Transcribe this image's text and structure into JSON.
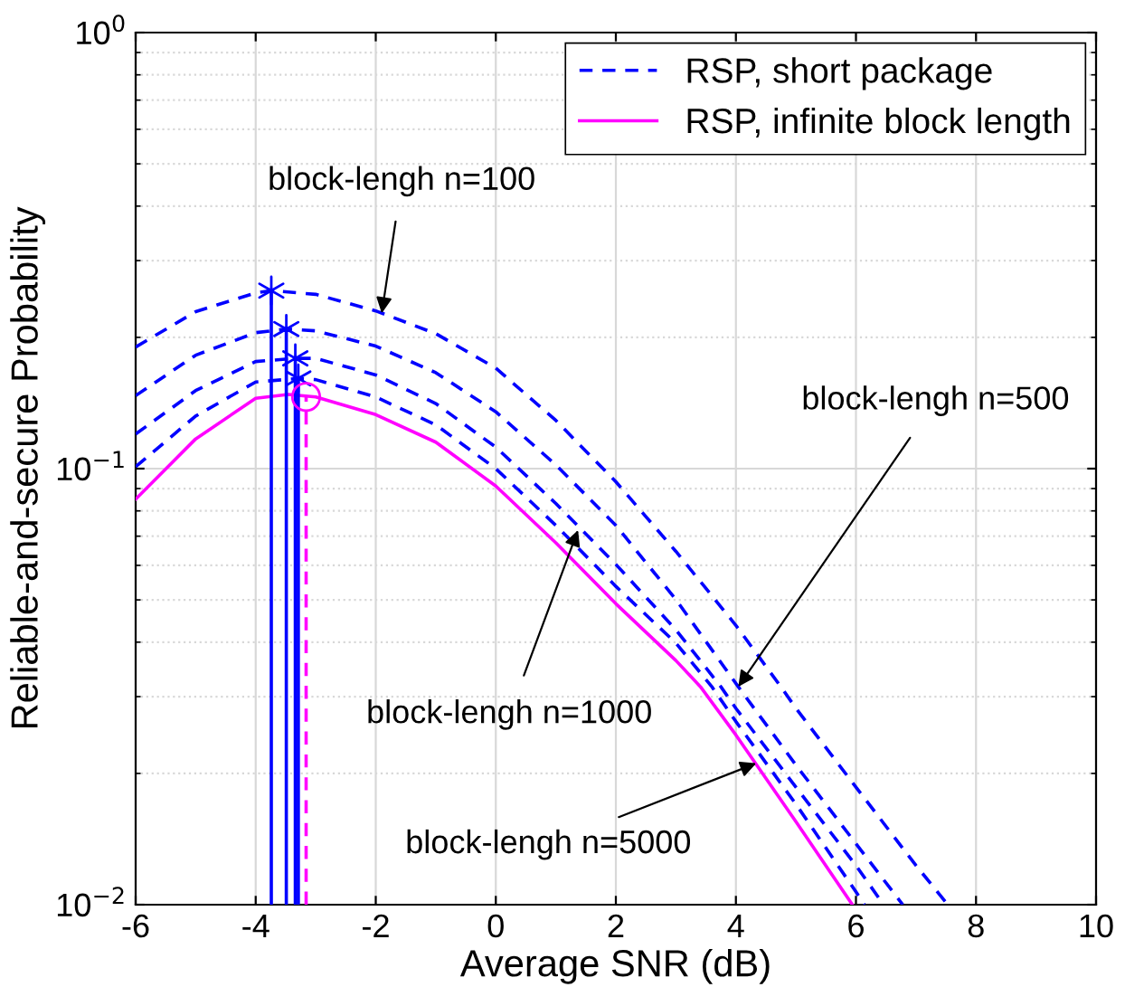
{
  "chart_data": {
    "type": "line",
    "xlabel": "Average SNR (dB)",
    "ylabel": "Reliable-and-secure Probability",
    "log": "y",
    "grid": true,
    "legend": "top right",
    "xlim": [
      -6,
      10
    ],
    "xticks": [
      -6,
      -4,
      -2,
      0,
      2,
      4,
      6,
      8,
      10
    ],
    "ylim": [
      0.01,
      1
    ],
    "yticks": [
      {
        "value": 0.01,
        "label": "10$^{−2}$"
      },
      {
        "value": 0.1,
        "label": "10$^{−1}$"
      },
      {
        "value": 1,
        "label": "10$^{0}$"
      }
    ],
    "series": [
      {
        "name": "RSP, short package",
        "color": "#0000ff",
        "line_style": "dashed",
        "marker": "none",
        "x": [
          -6,
          -5,
          -4,
          -3.74,
          -3,
          -2,
          -1,
          0,
          1,
          2,
          3,
          4,
          4.75,
          5,
          6,
          7,
          7.53
        ],
        "values": [
          0.19,
          0.229,
          0.253,
          0.256,
          0.251,
          0.23,
          0.204,
          0.17,
          0.129,
          0.0933,
          0.0646,
          0.0437,
          0.0316,
          0.0282,
          0.0186,
          0.0123,
          0.01
        ]
      },
      {
        "color": "#0000ff",
        "line_style": "dashed",
        "marker": "none",
        "x": [
          -6,
          -5,
          -4,
          -3.49,
          -3,
          -2,
          -1,
          0,
          1,
          2,
          3,
          4.04,
          5,
          6,
          6.78
        ],
        "values": [
          0.147,
          0.182,
          0.205,
          0.209,
          0.207,
          0.191,
          0.166,
          0.135,
          0.102,
          0.0741,
          0.0501,
          0.0316,
          0.0209,
          0.0138,
          0.01
        ]
      },
      {
        "color": "#0000ff",
        "line_style": "dashed",
        "marker": "none",
        "x": [
          -6,
          -5,
          -4,
          -3.34,
          -3,
          -2,
          -1,
          0,
          1,
          2,
          3,
          3.75,
          4,
          5,
          6,
          6.46
        ],
        "values": [
          0.12,
          0.151,
          0.176,
          0.179,
          0.179,
          0.164,
          0.141,
          0.112,
          0.0832,
          0.0603,
          0.0427,
          0.0316,
          0.0282,
          0.0186,
          0.0123,
          0.01
        ]
      },
      {
        "color": "#0000ff",
        "line_style": "dashed",
        "marker": "none",
        "x": [
          -6,
          -5,
          -4,
          -3.29,
          -3,
          -2,
          -1,
          0,
          1,
          2,
          3,
          3.6,
          4,
          5,
          6,
          6.14
        ],
        "values": [
          0.101,
          0.132,
          0.158,
          0.161,
          0.16,
          0.146,
          0.126,
          0.1,
          0.0741,
          0.0537,
          0.0398,
          0.0316,
          0.0263,
          0.017,
          0.0107,
          0.01
        ]
      },
      {
        "name": "RSP, infinite block length",
        "color": "#ff00ff",
        "line_style": "solid",
        "marker": "none",
        "x": [
          -6,
          -5,
          -4,
          -3.46,
          -3,
          -2,
          -1,
          0,
          1,
          2,
          3,
          3.41,
          4,
          5,
          5.94
        ],
        "values": [
          0.0851,
          0.117,
          0.145,
          0.148,
          0.146,
          0.133,
          0.115,
          0.0912,
          0.0676,
          0.049,
          0.0363,
          0.0316,
          0.0245,
          0.0155,
          0.01
        ]
      },
      {
        "color": "#0000ff",
        "line_style": "solid",
        "marker": "none",
        "x": [
          -3.74,
          -3.74
        ],
        "values": [
          0.01,
          0.256
        ]
      },
      {
        "color": "#0000ff",
        "line_style": "solid",
        "marker": "none",
        "x": [
          -3.49,
          -3.49
        ],
        "values": [
          0.01,
          0.209
        ]
      },
      {
        "color": "#0000ff",
        "line_style": "solid",
        "marker": "none",
        "x": [
          -3.34,
          -3.34
        ],
        "values": [
          0.01,
          0.179
        ]
      },
      {
        "color": "#0000ff",
        "line_style": "solid",
        "marker": "none",
        "x": [
          -3.29,
          -3.29
        ],
        "values": [
          0.01,
          0.161
        ]
      },
      {
        "color": "#ff00ff",
        "line_style": "dashed",
        "marker": "none",
        "x": [
          -3.16,
          -3.16
        ],
        "values": [
          0.01,
          0.146
        ]
      },
      {
        "type": "scatter",
        "color": "#0000ff",
        "marker": "cross",
        "x": [
          -3.74,
          -3.49,
          -3.34,
          -3.29
        ],
        "values": [
          0.256,
          0.209,
          0.179,
          0.161
        ]
      },
      {
        "type": "scatter",
        "color": "#ff00ff",
        "marker": "circle",
        "x": [
          -3.16
        ],
        "values": [
          0.146
        ]
      }
    ],
    "annotations": [
      {
        "text": "block-lengh n=100",
        "x": -1.9,
        "y": 0.227
      },
      {
        "text": "block-lengh n=500",
        "x": 4.04,
        "y": 0.0316
      },
      {
        "text": "block-lengh n=1000",
        "x": 1.37,
        "y": 0.0723
      },
      {
        "text": "block-lengh n=5000",
        "x": 4.34,
        "y": 0.0211
      }
    ]
  }
}
